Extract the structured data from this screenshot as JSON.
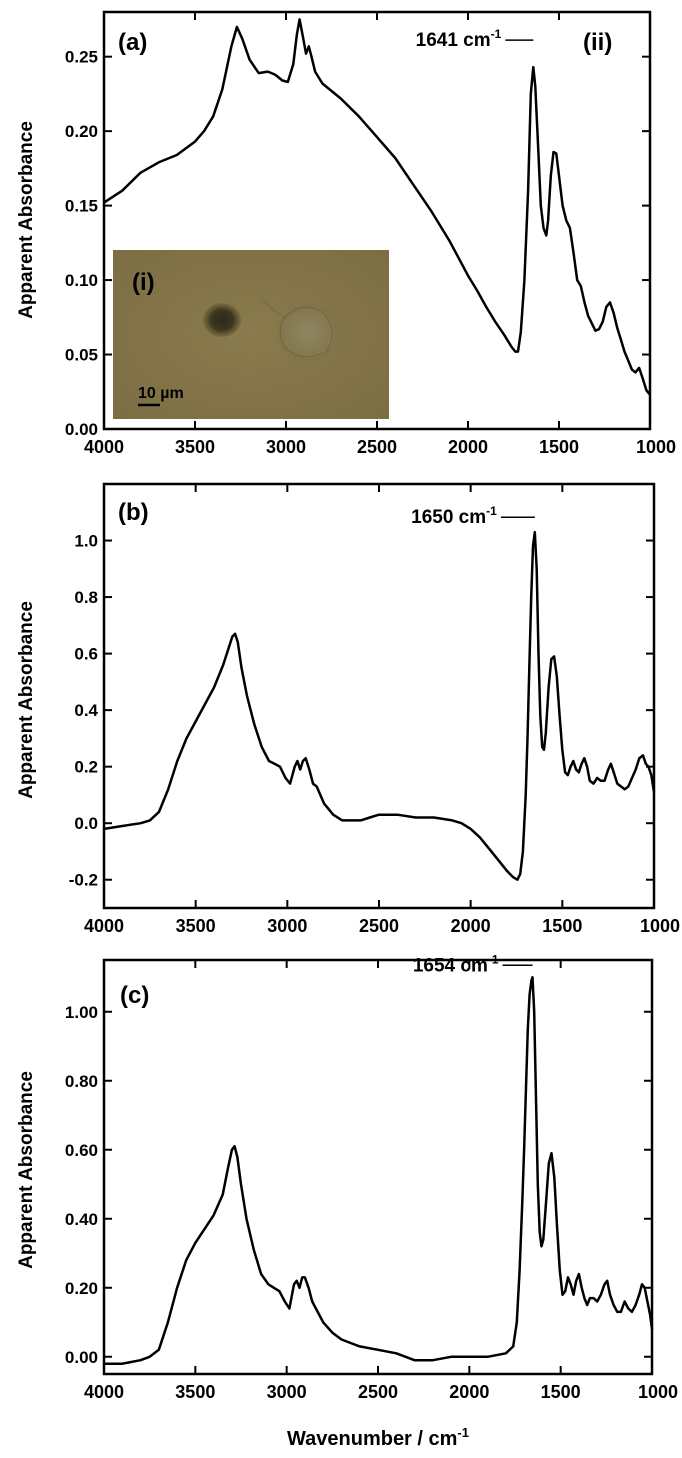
{
  "chart_data": [
    {
      "type": "line",
      "panel_label": "(a)",
      "sub_label": "(ii)",
      "ylabel": "Apparent Absorbance",
      "xlim": [
        4000,
        1000
      ],
      "ylim": [
        0,
        0.28
      ],
      "xticks": [
        "4000",
        "3500",
        "3000",
        "2500",
        "2000",
        "1500",
        "1000"
      ],
      "yticks": [
        "0.00",
        "0.05",
        "0.10",
        "0.15",
        "0.20",
        "0.25"
      ],
      "annotation": {
        "text": "1641 cm",
        "superscript": "-1",
        "x": 1641,
        "y": 0.245
      },
      "inset": {
        "label": "(i)",
        "scale_bar_text": "10 µm"
      },
      "series": [
        {
          "x": [
            4000,
            3900,
            3800,
            3700,
            3600,
            3500,
            3450,
            3400,
            3350,
            3300,
            3270,
            3240,
            3200,
            3150,
            3100,
            3060,
            3020,
            2990,
            2960,
            2940,
            2925,
            2905,
            2890,
            2875,
            2860,
            2840,
            2800,
            2700,
            2600,
            2500,
            2400,
            2300,
            2200,
            2100,
            2000,
            1950,
            1900,
            1850,
            1800,
            1760,
            1740,
            1725,
            1710,
            1690,
            1670,
            1655,
            1641,
            1630,
            1615,
            1600,
            1585,
            1570,
            1560,
            1545,
            1530,
            1515,
            1500,
            1480,
            1460,
            1440,
            1420,
            1400,
            1380,
            1360,
            1340,
            1320,
            1300,
            1280,
            1260,
            1240,
            1220,
            1200,
            1180,
            1160,
            1140,
            1120,
            1100,
            1080,
            1060,
            1040,
            1020,
            1000
          ],
          "y": [
            0.152,
            0.16,
            0.172,
            0.179,
            0.184,
            0.193,
            0.2,
            0.21,
            0.228,
            0.257,
            0.27,
            0.262,
            0.248,
            0.239,
            0.24,
            0.238,
            0.234,
            0.233,
            0.245,
            0.265,
            0.275,
            0.262,
            0.252,
            0.257,
            0.25,
            0.24,
            0.232,
            0.222,
            0.21,
            0.196,
            0.182,
            0.164,
            0.146,
            0.126,
            0.103,
            0.093,
            0.082,
            0.072,
            0.063,
            0.055,
            0.052,
            0.052,
            0.065,
            0.1,
            0.16,
            0.225,
            0.243,
            0.23,
            0.19,
            0.15,
            0.135,
            0.13,
            0.14,
            0.17,
            0.186,
            0.185,
            0.17,
            0.15,
            0.14,
            0.135,
            0.118,
            0.1,
            0.096,
            0.085,
            0.076,
            0.071,
            0.066,
            0.067,
            0.072,
            0.082,
            0.085,
            0.078,
            0.068,
            0.06,
            0.052,
            0.046,
            0.04,
            0.038,
            0.041,
            0.034,
            0.026,
            0.023
          ]
        }
      ]
    },
    {
      "type": "line",
      "panel_label": "(b)",
      "ylabel": "Apparent Absorbance",
      "xlim": [
        4000,
        1000
      ],
      "ylim": [
        -0.3,
        1.2
      ],
      "xticks": [
        "4000",
        "3500",
        "3000",
        "2500",
        "2000",
        "1500",
        "1000"
      ],
      "yticks": [
        "-0.2",
        "0.0",
        "0.2",
        "0.4",
        "0.6",
        "0.8",
        "1.0"
      ],
      "annotation": {
        "text": "1650 cm",
        "superscript": "-1",
        "x": 1650,
        "y": 1.04
      },
      "series": [
        {
          "x": [
            4000,
            3900,
            3800,
            3750,
            3700,
            3650,
            3600,
            3550,
            3500,
            3450,
            3400,
            3350,
            3320,
            3300,
            3285,
            3270,
            3250,
            3220,
            3180,
            3140,
            3100,
            3070,
            3040,
            3010,
            2985,
            2960,
            2945,
            2930,
            2915,
            2900,
            2880,
            2860,
            2840,
            2820,
            2800,
            2750,
            2700,
            2650,
            2600,
            2550,
            2500,
            2400,
            2300,
            2200,
            2100,
            2050,
            2000,
            1950,
            1900,
            1850,
            1800,
            1770,
            1745,
            1730,
            1715,
            1700,
            1690,
            1680,
            1670,
            1660,
            1650,
            1640,
            1630,
            1620,
            1610,
            1600,
            1590,
            1575,
            1560,
            1545,
            1530,
            1515,
            1500,
            1485,
            1470,
            1455,
            1440,
            1425,
            1410,
            1395,
            1380,
            1365,
            1350,
            1330,
            1310,
            1290,
            1270,
            1250,
            1235,
            1220,
            1200,
            1180,
            1160,
            1140,
            1120,
            1100,
            1080,
            1060,
            1045,
            1030,
            1015,
            1000
          ],
          "y": [
            -0.02,
            -0.01,
            0.0,
            0.01,
            0.04,
            0.12,
            0.22,
            0.3,
            0.36,
            0.42,
            0.48,
            0.56,
            0.62,
            0.66,
            0.67,
            0.64,
            0.55,
            0.45,
            0.35,
            0.27,
            0.22,
            0.21,
            0.2,
            0.16,
            0.14,
            0.2,
            0.22,
            0.19,
            0.22,
            0.23,
            0.19,
            0.14,
            0.13,
            0.1,
            0.07,
            0.03,
            0.01,
            0.01,
            0.01,
            0.02,
            0.03,
            0.03,
            0.02,
            0.02,
            0.01,
            0.0,
            -0.02,
            -0.05,
            -0.09,
            -0.13,
            -0.17,
            -0.19,
            -0.2,
            -0.18,
            -0.1,
            0.1,
            0.3,
            0.55,
            0.8,
            0.98,
            1.03,
            0.9,
            0.6,
            0.38,
            0.27,
            0.26,
            0.32,
            0.48,
            0.58,
            0.59,
            0.52,
            0.38,
            0.26,
            0.18,
            0.17,
            0.2,
            0.22,
            0.19,
            0.18,
            0.21,
            0.23,
            0.2,
            0.15,
            0.14,
            0.16,
            0.15,
            0.15,
            0.19,
            0.21,
            0.18,
            0.14,
            0.13,
            0.12,
            0.13,
            0.16,
            0.19,
            0.23,
            0.24,
            0.21,
            0.2,
            0.17,
            0.11
          ]
        }
      ]
    },
    {
      "type": "line",
      "panel_label": "(c)",
      "xlabel": "Wavenumber / cm",
      "xlabel_superscript": "-1",
      "ylabel": "Apparent Absorbance",
      "xlim": [
        4000,
        1000
      ],
      "ylim": [
        -0.05,
        1.15
      ],
      "xticks": [
        "4000",
        "3500",
        "3000",
        "2500",
        "2000",
        "1500",
        "1000"
      ],
      "yticks": [
        "0.00",
        "0.20",
        "0.40",
        "0.60",
        "0.80",
        "1.00"
      ],
      "annotation": {
        "text": "1654 cm",
        "superscript": "-1",
        "x": 1654,
        "y": 1.1
      },
      "series": [
        {
          "x": [
            4000,
            3900,
            3800,
            3750,
            3700,
            3650,
            3600,
            3550,
            3500,
            3450,
            3400,
            3350,
            3320,
            3300,
            3285,
            3270,
            3250,
            3220,
            3180,
            3140,
            3100,
            3070,
            3040,
            3010,
            2985,
            2960,
            2945,
            2930,
            2915,
            2900,
            2880,
            2860,
            2840,
            2800,
            2750,
            2700,
            2650,
            2600,
            2500,
            2400,
            2300,
            2200,
            2100,
            2000,
            1900,
            1800,
            1760,
            1740,
            1725,
            1710,
            1700,
            1690,
            1680,
            1670,
            1660,
            1654,
            1645,
            1635,
            1625,
            1615,
            1605,
            1595,
            1580,
            1565,
            1550,
            1535,
            1520,
            1505,
            1490,
            1475,
            1460,
            1445,
            1430,
            1415,
            1400,
            1385,
            1370,
            1355,
            1340,
            1320,
            1300,
            1280,
            1260,
            1245,
            1230,
            1210,
            1190,
            1170,
            1150,
            1130,
            1110,
            1090,
            1070,
            1055,
            1040,
            1025,
            1010,
            1000
          ],
          "y": [
            -0.02,
            -0.02,
            -0.01,
            0.0,
            0.02,
            0.1,
            0.2,
            0.28,
            0.33,
            0.37,
            0.41,
            0.47,
            0.55,
            0.6,
            0.61,
            0.58,
            0.5,
            0.4,
            0.31,
            0.24,
            0.21,
            0.2,
            0.19,
            0.16,
            0.14,
            0.21,
            0.22,
            0.2,
            0.23,
            0.23,
            0.2,
            0.16,
            0.14,
            0.1,
            0.07,
            0.05,
            0.04,
            0.03,
            0.02,
            0.01,
            -0.01,
            -0.01,
            0.0,
            0.0,
            0.0,
            0.01,
            0.03,
            0.1,
            0.25,
            0.45,
            0.6,
            0.78,
            0.95,
            1.05,
            1.09,
            1.1,
            1.0,
            0.75,
            0.5,
            0.36,
            0.32,
            0.34,
            0.45,
            0.56,
            0.59,
            0.52,
            0.38,
            0.25,
            0.18,
            0.19,
            0.23,
            0.21,
            0.18,
            0.22,
            0.24,
            0.2,
            0.17,
            0.15,
            0.17,
            0.17,
            0.16,
            0.18,
            0.21,
            0.22,
            0.18,
            0.15,
            0.13,
            0.13,
            0.16,
            0.14,
            0.13,
            0.15,
            0.18,
            0.21,
            0.2,
            0.16,
            0.12,
            0.08
          ]
        }
      ]
    }
  ]
}
